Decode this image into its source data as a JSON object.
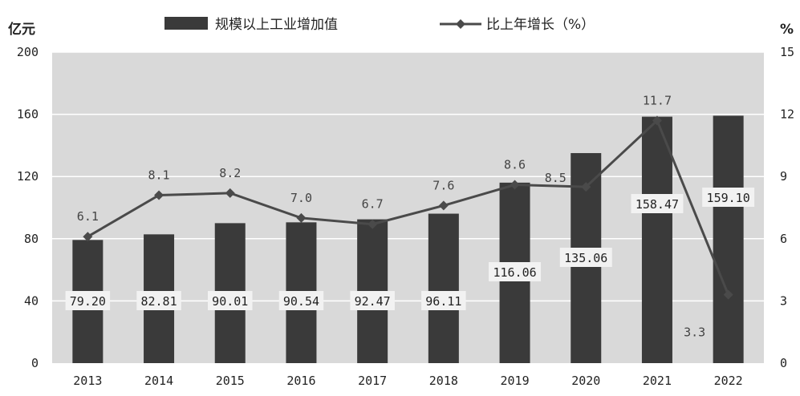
{
  "chart_data": {
    "type": "bar",
    "categories": [
      "2013",
      "2014",
      "2015",
      "2016",
      "2017",
      "2018",
      "2019",
      "2020",
      "2021",
      "2022"
    ],
    "series": [
      {
        "name": "规模以上工业增加值",
        "type": "bar",
        "axis": "left",
        "values": [
          79.2,
          82.81,
          90.01,
          90.54,
          92.47,
          96.11,
          116.06,
          135.06,
          158.47,
          159.1
        ],
        "labels": [
          "79.20",
          "82.81",
          "90.01",
          "90.54",
          "92.47",
          "96.11",
          "116.06",
          "135.06",
          "158.47",
          "159.10"
        ]
      },
      {
        "name": "比上年增长（%）",
        "type": "line",
        "axis": "right",
        "values": [
          6.1,
          8.1,
          8.2,
          7.0,
          6.7,
          7.6,
          8.6,
          8.5,
          11.7,
          3.3
        ],
        "labels": [
          "6.1",
          "8.1",
          "8.2",
          "7.0",
          "6.7",
          "7.6",
          "8.6",
          "8.5",
          "11.7",
          "3.3"
        ]
      }
    ],
    "ylabel": "亿元",
    "y2label": "%",
    "ylim": [
      0,
      200
    ],
    "y2lim": [
      0,
      15
    ],
    "yticks": [
      "0",
      "40",
      "80",
      "120",
      "160",
      "200"
    ],
    "y2ticks": [
      "0",
      "3",
      "6",
      "9",
      "12",
      "15"
    ],
    "grid": true,
    "legend": "top-center",
    "colors": {
      "plot_bg": "#d9d9d9",
      "bar": "#3a3a3a",
      "line": "#4a4a4a",
      "grid": "#ffffff",
      "label_box": "#f2f2f2"
    }
  }
}
